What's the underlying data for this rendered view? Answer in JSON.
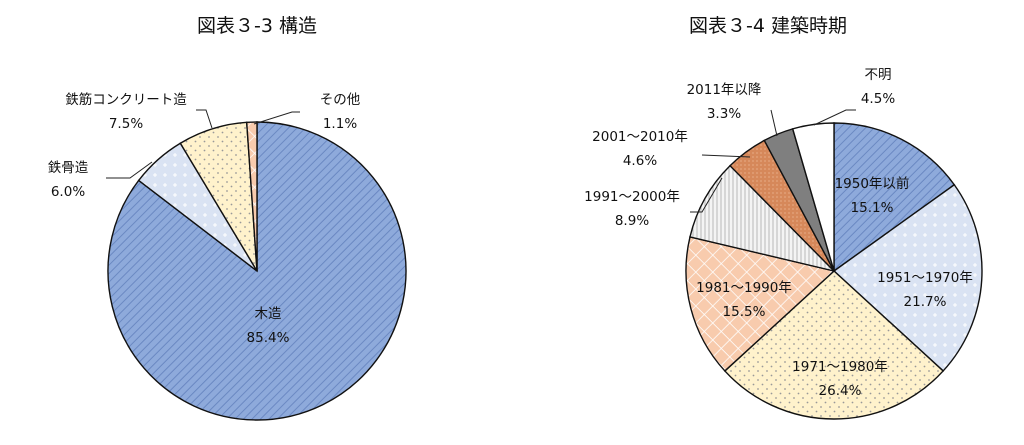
{
  "chart_data": [
    {
      "type": "pie",
      "title": "図表３-3 構造",
      "start_angle_deg": 0,
      "direction": "clockwise",
      "slices": [
        {
          "label": "木造",
          "value": 85.4,
          "value_label": "85.4%",
          "color": "#8eaadb"
        },
        {
          "label": "鉄骨造",
          "value": 6.0,
          "value_label": "6.0%",
          "color": "#dae3f3"
        },
        {
          "label": "鉄筋コンクリート造",
          "value": 7.5,
          "value_label": "7.5%",
          "color": "#fff2cc"
        },
        {
          "label": "その他",
          "value": 1.1,
          "value_label": "1.1%",
          "color": "#f8cbad"
        }
      ]
    },
    {
      "type": "pie",
      "title": "図表３-4 建築時期",
      "start_angle_deg": 0,
      "direction": "clockwise",
      "slices": [
        {
          "label": "1950年以前",
          "value": 15.1,
          "value_label": "15.1%",
          "color": "#8eaadb"
        },
        {
          "label": "1951～1970年",
          "value": 21.7,
          "value_label": "21.7%",
          "color": "#dae3f3"
        },
        {
          "label": "1971～1980年",
          "value": 26.4,
          "value_label": "26.4%",
          "color": "#fff2cc"
        },
        {
          "label": "1981～1990年",
          "value": 15.5,
          "value_label": "15.5%",
          "color": "#f8cbad"
        },
        {
          "label": "1991～2000年",
          "value": 8.9,
          "value_label": "8.9%",
          "color": "#ededed"
        },
        {
          "label": "2001～2010年",
          "value": 4.6,
          "value_label": "4.6%",
          "color": "#d6885a"
        },
        {
          "label": "2011年以降",
          "value": 3.3,
          "value_label": "3.3%",
          "color": "#7f7f7f"
        },
        {
          "label": "不明",
          "value": 4.5,
          "value_label": "4.5%",
          "color": "#ffffff"
        }
      ]
    }
  ]
}
